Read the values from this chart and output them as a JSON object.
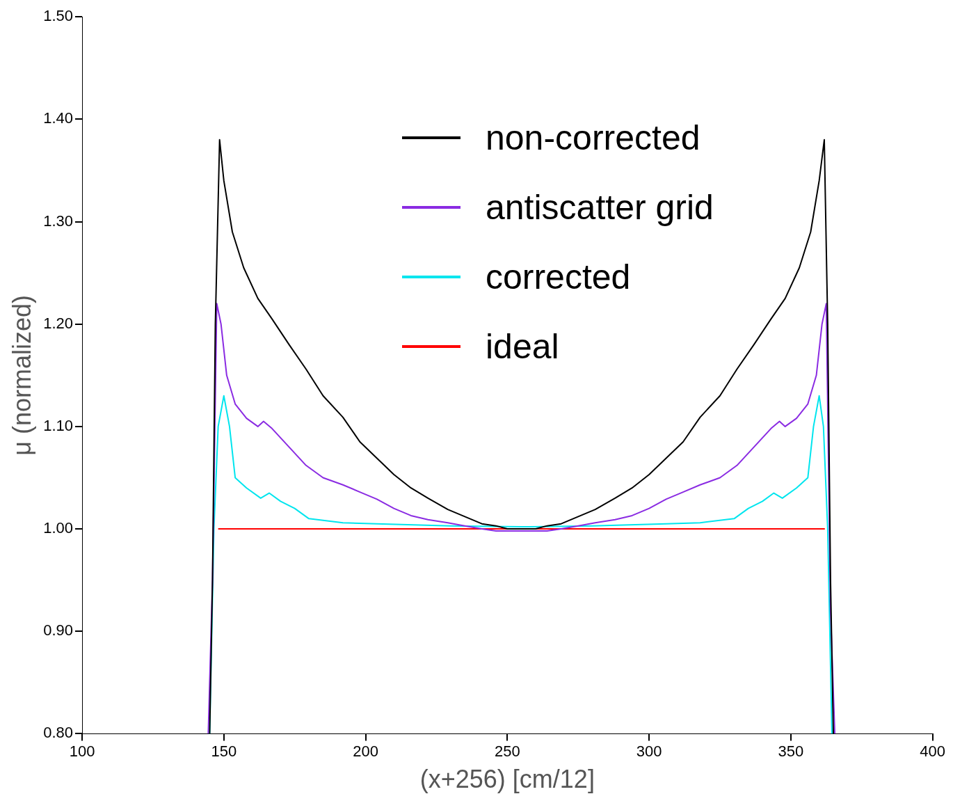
{
  "chart_data": {
    "type": "line",
    "xlabel": "(x+256) [cm/12]",
    "ylabel": "μ (normalized)",
    "xlim": [
      100,
      400
    ],
    "xticks": [
      100,
      150,
      200,
      250,
      300,
      350,
      400
    ],
    "ylim": [
      0.8,
      1.5
    ],
    "yticks": [
      {
        "value": 0.8,
        "label": "0.80"
      },
      {
        "value": 0.9,
        "label": "0.90"
      },
      {
        "value": 1.0,
        "label": "1.00"
      },
      {
        "value": 1.1,
        "label": "1.10"
      },
      {
        "value": 1.2,
        "label": "1.20"
      },
      {
        "value": 1.3,
        "label": "1.30"
      },
      {
        "value": 1.4,
        "label": "1.40"
      },
      {
        "value": 1.5,
        "label": "1.50"
      }
    ],
    "grid": false,
    "legend": "top",
    "marker": "none",
    "line_style": "solid",
    "series": [
      {
        "name": "non-corrected",
        "color": "#000000",
        "x": [
          145,
          146,
          147,
          148.5,
          150,
          153,
          157,
          162,
          167,
          173,
          179,
          185,
          192,
          198,
          204,
          210,
          216,
          222,
          229,
          235,
          241,
          246,
          250,
          255,
          260,
          264,
          269,
          275,
          281,
          288,
          294,
          300,
          306,
          312,
          318,
          325,
          331,
          337,
          343,
          348,
          353,
          357,
          360,
          361.8,
          363,
          364,
          365
        ],
        "values": [
          0.8,
          0.95,
          1.2,
          1.38,
          1.34,
          1.29,
          1.255,
          1.225,
          1.205,
          1.18,
          1.156,
          1.13,
          1.109,
          1.085,
          1.069,
          1.053,
          1.04,
          1.03,
          1.019,
          1.012,
          1.005,
          1.003,
          1.0,
          1.0,
          1.0,
          1.003,
          1.005,
          1.012,
          1.019,
          1.03,
          1.04,
          1.053,
          1.069,
          1.085,
          1.109,
          1.13,
          1.156,
          1.18,
          1.205,
          1.225,
          1.255,
          1.29,
          1.34,
          1.38,
          1.2,
          0.95,
          0.8
        ]
      },
      {
        "name": "antiscatter grid",
        "color": "#8a2be2",
        "x": [
          144.5,
          146,
          147.5,
          149,
          151,
          154,
          158,
          162,
          164,
          167,
          173,
          179,
          185,
          192,
          198,
          204,
          210,
          216,
          222,
          229,
          235,
          241,
          246,
          255,
          264,
          269,
          275,
          281,
          288,
          294,
          300,
          306,
          312,
          318,
          325,
          331,
          337,
          343,
          346,
          348,
          352,
          356,
          359,
          361,
          362.5,
          364,
          365.5
        ],
        "values": [
          0.8,
          0.95,
          1.22,
          1.2,
          1.15,
          1.122,
          1.108,
          1.1,
          1.105,
          1.098,
          1.08,
          1.062,
          1.05,
          1.043,
          1.036,
          1.029,
          1.02,
          1.013,
          1.009,
          1.006,
          1.003,
          1.0,
          0.998,
          0.998,
          0.998,
          1.0,
          1.003,
          1.006,
          1.009,
          1.013,
          1.02,
          1.029,
          1.036,
          1.043,
          1.05,
          1.062,
          1.08,
          1.098,
          1.105,
          1.1,
          1.108,
          1.122,
          1.15,
          1.2,
          1.22,
          0.92,
          0.8
        ]
      },
      {
        "name": "corrected",
        "color": "#00e5ee",
        "x": [
          145,
          146.5,
          148,
          150,
          152,
          154,
          158,
          163,
          166,
          170,
          175,
          180,
          192,
          204,
          230,
          255,
          280,
          306,
          318,
          330,
          335,
          340,
          344,
          347,
          352,
          356,
          358,
          360,
          361.5,
          363,
          364.5
        ],
        "values": [
          0.8,
          1.0,
          1.1,
          1.13,
          1.1,
          1.05,
          1.04,
          1.03,
          1.035,
          1.027,
          1.02,
          1.01,
          1.006,
          1.005,
          1.003,
          1.002,
          1.003,
          1.005,
          1.006,
          1.01,
          1.02,
          1.027,
          1.035,
          1.03,
          1.04,
          1.05,
          1.1,
          1.13,
          1.1,
          1.0,
          0.8
        ]
      },
      {
        "name": "ideal",
        "color": "#ff0000",
        "x": [
          148,
          362
        ],
        "values": [
          1.0,
          1.0
        ]
      }
    ]
  }
}
